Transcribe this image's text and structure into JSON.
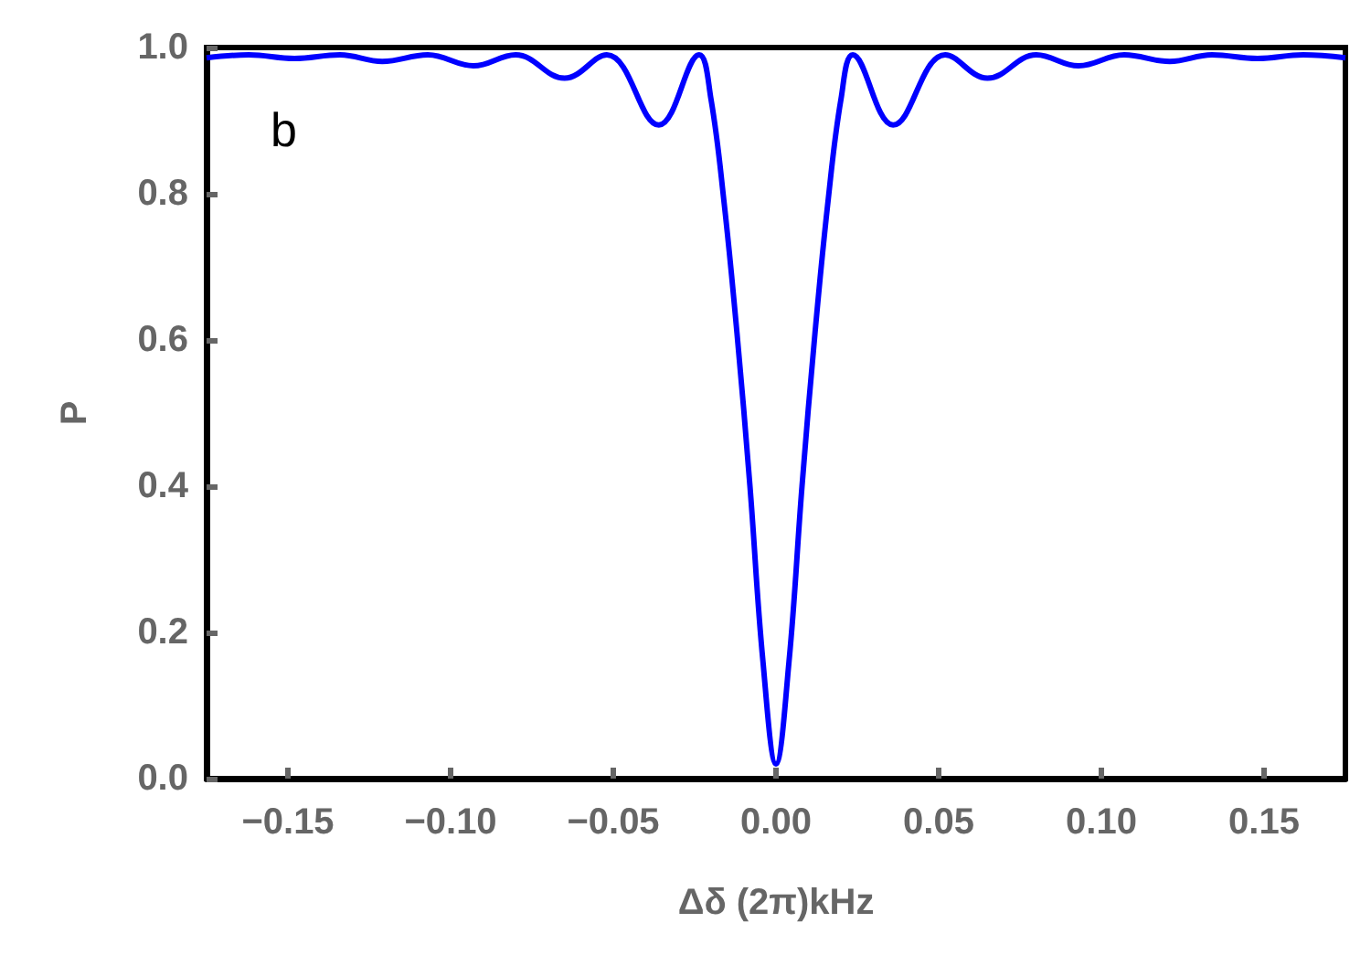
{
  "chart_data": {
    "type": "line",
    "xlabel": "Δδ (2π)kHz",
    "ylabel": "P",
    "annotations": [
      "b"
    ],
    "x": [
      -0.175,
      -0.162,
      -0.148,
      -0.134,
      -0.121,
      -0.107,
      -0.093,
      -0.08,
      -0.065,
      -0.052,
      -0.036,
      -0.0236,
      -0.02,
      -0.016,
      -0.012,
      -0.008,
      -0.004,
      0,
      0.004,
      0.008,
      0.012,
      0.016,
      0.02,
      0.0236,
      0.036,
      0.052,
      0.065,
      0.08,
      0.093,
      0.107,
      0.121,
      0.134,
      0.148,
      0.162,
      0.175
    ],
    "series": [
      {
        "color": "#0000ff",
        "values": [
          0.986,
          0.99,
          0.985,
          0.99,
          0.981,
          0.99,
          0.975,
          0.99,
          0.958,
          0.99,
          0.894,
          0.99,
          0.93,
          0.79,
          0.61,
          0.4,
          0.16,
          0.02,
          0.16,
          0.4,
          0.61,
          0.79,
          0.93,
          0.99,
          0.894,
          0.99,
          0.958,
          0.99,
          0.975,
          0.99,
          0.981,
          0.99,
          0.985,
          0.99,
          0.986
        ]
      }
    ],
    "xlim": [
      -0.175,
      0.175
    ],
    "xticks": [
      {
        "value": -0.15,
        "label": "−0.15"
      },
      {
        "value": -0.1,
        "label": "−0.10"
      },
      {
        "value": -0.05,
        "label": "−0.05"
      },
      {
        "value": 0,
        "label": "0.00"
      },
      {
        "value": 0.05,
        "label": "0.05"
      },
      {
        "value": 0.1,
        "label": "0.10"
      },
      {
        "value": 0.15,
        "label": "0.15"
      }
    ],
    "ylim": [
      0,
      1
    ],
    "yticks": [
      {
        "value": 0,
        "label": "0.0"
      },
      0.2,
      0.4,
      0.6,
      0.8,
      {
        "value": 1,
        "label": "1.0"
      }
    ],
    "grid": false,
    "marker": "none",
    "line_style": "solid"
  }
}
